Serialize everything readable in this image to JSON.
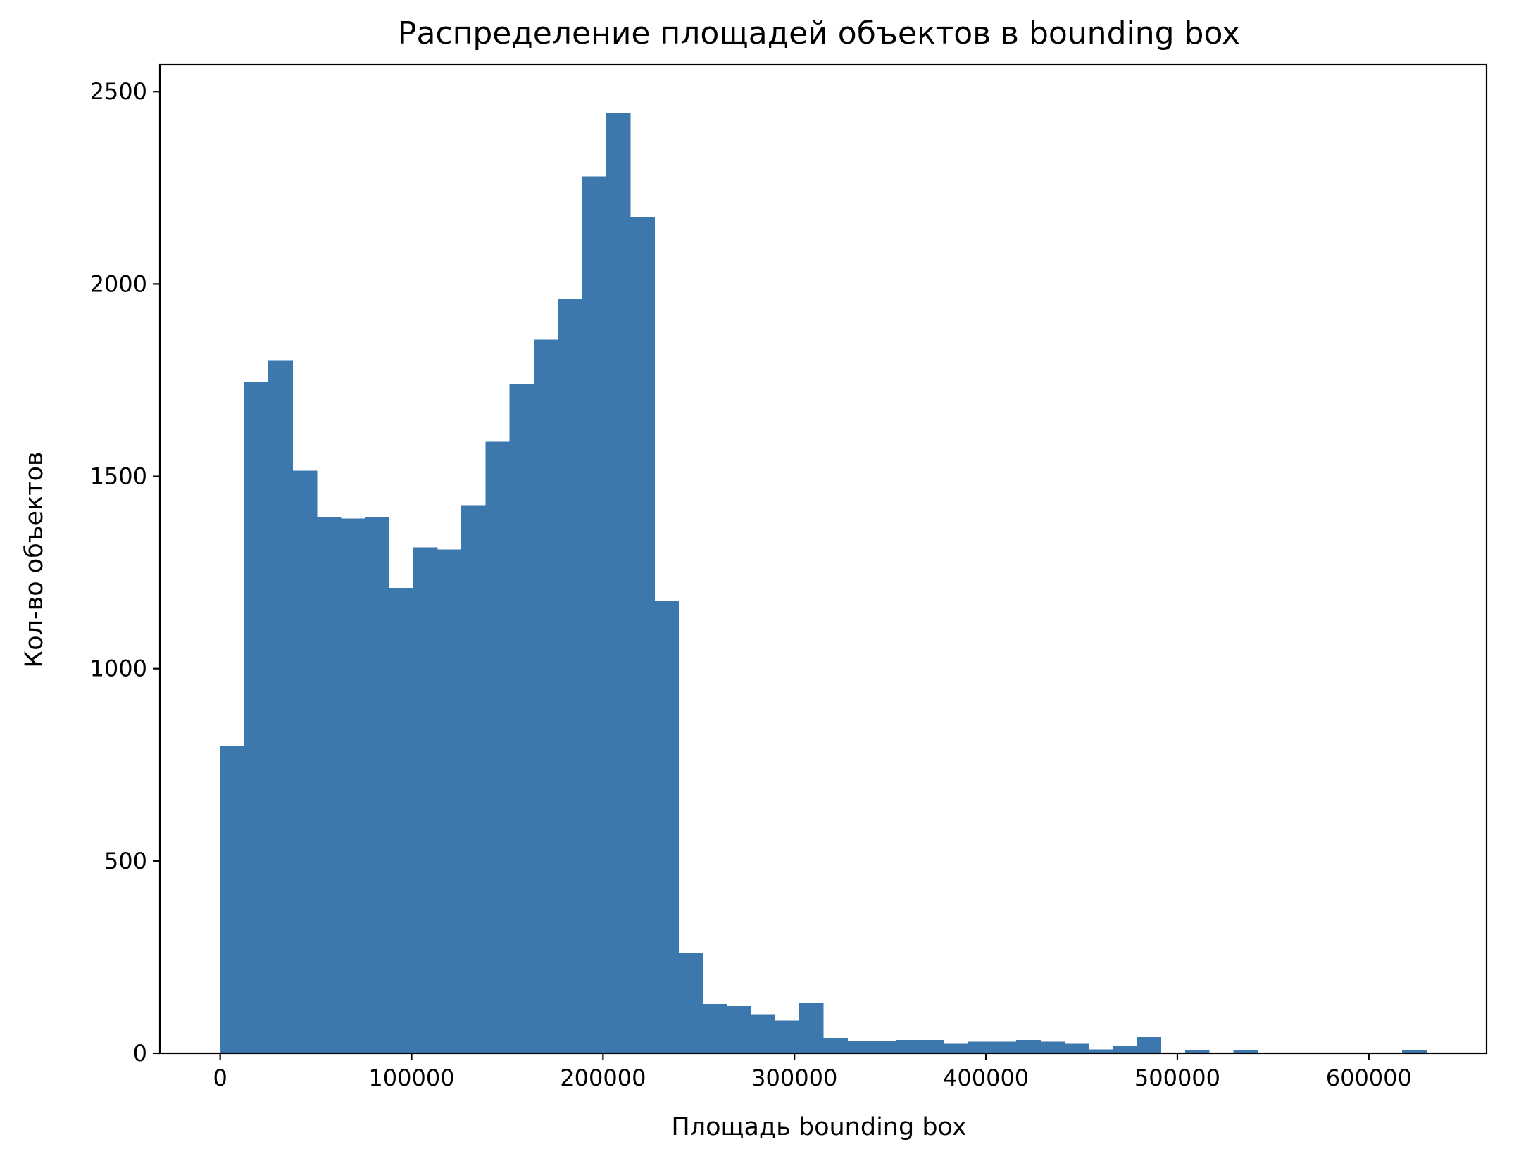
{
  "chart_data": {
    "type": "bar",
    "title": "Распределение площадей объектов в bounding box",
    "xlabel": "Площадь bounding box",
    "ylabel": "Кол-во объектов",
    "xlim": [
      -31500,
      661500
    ],
    "ylim": [
      0,
      2570
    ],
    "bin_width": 12600,
    "bin_start": 0,
    "x_ticks": [
      0,
      100000,
      200000,
      300000,
      400000,
      500000,
      600000
    ],
    "x_tick_labels": [
      "0",
      "100000",
      "200000",
      "300000",
      "400000",
      "500000",
      "600000"
    ],
    "y_ticks": [
      0,
      500,
      1000,
      1500,
      2000,
      2500
    ],
    "y_tick_labels": [
      "0",
      "500",
      "1000",
      "1500",
      "2000",
      "2500"
    ],
    "bar_color": "#3c77ae",
    "values": [
      800,
      1745,
      1800,
      1515,
      1395,
      1390,
      1395,
      1210,
      1315,
      1310,
      1425,
      1590,
      1740,
      1855,
      1960,
      2280,
      2445,
      2175,
      1175,
      262,
      128,
      123,
      102,
      85,
      130,
      38,
      32,
      32,
      35,
      35,
      25,
      30,
      30,
      35,
      30,
      25,
      10,
      20,
      42,
      0,
      8,
      0,
      8,
      0,
      0,
      0,
      0,
      0,
      0,
      8
    ],
    "grid": false,
    "legend": "none"
  }
}
